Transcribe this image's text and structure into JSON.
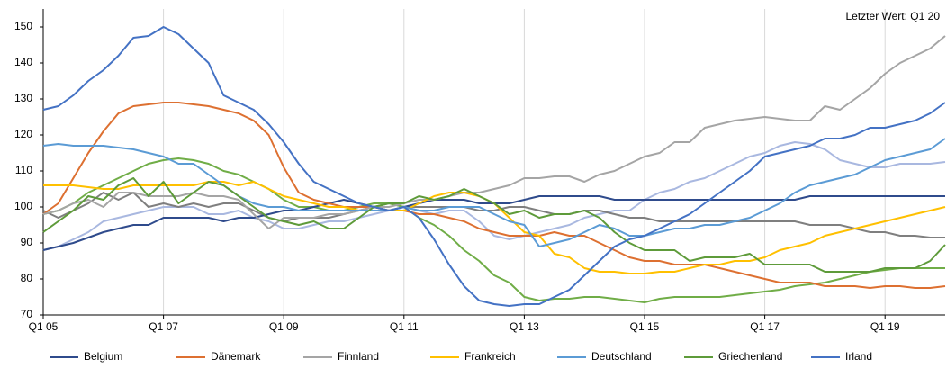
{
  "chart_data": {
    "type": "line",
    "annotation": "Letzter Wert: Q1 20",
    "categories": [
      "Q1 05",
      null,
      null,
      null,
      null,
      null,
      null,
      null,
      "Q1 07",
      null,
      null,
      null,
      null,
      null,
      null,
      null,
      "Q1 09",
      null,
      null,
      null,
      null,
      null,
      null,
      null,
      "Q1 11",
      null,
      null,
      null,
      null,
      null,
      null,
      null,
      "Q1 13",
      null,
      null,
      null,
      null,
      null,
      null,
      null,
      "Q1 15",
      null,
      null,
      null,
      null,
      null,
      null,
      null,
      "Q1 17",
      null,
      null,
      null,
      null,
      null,
      null,
      null,
      "Q1 19",
      null,
      null,
      null,
      null
    ],
    "ylim": [
      70,
      155
    ],
    "yticks": [
      70,
      80,
      90,
      100,
      110,
      120,
      130,
      140,
      150
    ],
    "xgrid": true,
    "series": [
      {
        "color": "#a9b8e0",
        "values": [
          88,
          89,
          91,
          93,
          96,
          97,
          98,
          99,
          100,
          100,
          100,
          98,
          98,
          99,
          97,
          96,
          94,
          94,
          95,
          96,
          96,
          97,
          98,
          99,
          100,
          99,
          98,
          99,
          99,
          96,
          92,
          91,
          92,
          93,
          94,
          95,
          97,
          98,
          99,
          99,
          102,
          104,
          105,
          107,
          108,
          110,
          112,
          114,
          115,
          117,
          118,
          117.5,
          116,
          113,
          112,
          111,
          111,
          112,
          112,
          112,
          112.5
        ]
      },
      {
        "color": "#7f7f7f",
        "values": [
          99,
          97,
          99,
          101,
          104,
          102,
          104,
          100,
          101,
          100,
          101,
          100,
          101,
          101,
          99,
          97,
          96,
          97,
          97,
          97,
          98,
          99,
          100,
          101,
          100,
          100,
          100,
          100,
          100,
          99,
          99,
          100,
          100,
          99,
          98,
          98,
          99,
          99,
          98,
          97,
          97,
          96,
          96,
          96,
          96,
          96,
          96,
          96,
          96,
          96,
          96,
          95,
          95,
          95,
          94,
          93,
          93,
          92,
          92,
          91.5,
          91.5
        ]
      },
      {
        "color": "#70ad47",
        "values": [
          98,
          99,
          101,
          104,
          106,
          108,
          110,
          112,
          113,
          113.5,
          113,
          112,
          110,
          109,
          107,
          105,
          102,
          100,
          100,
          99,
          99,
          100,
          101,
          101,
          100,
          97,
          95,
          92,
          88,
          85,
          81,
          79,
          75,
          74,
          74.5,
          74.5,
          75,
          75,
          74.5,
          74,
          73.5,
          74.5,
          75,
          75,
          75,
          75,
          75.5,
          76,
          76.5,
          77,
          78,
          78.5,
          79,
          80,
          81,
          82,
          82.5,
          83,
          83,
          83,
          83
        ]
      },
      {
        "name": "Belgium",
        "color": "#2f4b8c",
        "values": [
          88,
          89,
          90,
          91.5,
          93,
          94,
          95,
          95,
          97,
          97,
          97,
          97,
          96,
          97,
          97,
          98,
          99,
          99,
          100,
          101,
          102,
          101,
          100,
          99,
          100,
          101,
          102,
          102,
          102,
          101,
          101,
          101,
          102,
          103,
          103,
          103,
          103,
          103,
          102,
          102,
          102,
          102,
          102,
          102,
          102,
          102,
          102,
          102,
          102,
          102,
          102,
          103,
          103,
          103,
          103,
          103,
          103,
          103,
          103,
          103,
          103
        ]
      },
      {
        "name": "Dänemark",
        "color": "#dd7031",
        "values": [
          98,
          101,
          108,
          115,
          121,
          126,
          128,
          128.5,
          129,
          129,
          128.5,
          128,
          127,
          126,
          124,
          120,
          111,
          104,
          102,
          101,
          100,
          100,
          100,
          99,
          99,
          98,
          98,
          97,
          96,
          94,
          93,
          92,
          92,
          92,
          93,
          92,
          92,
          90,
          88,
          86,
          85,
          85,
          84,
          84,
          84,
          83,
          82,
          81,
          80,
          79,
          79,
          79,
          78,
          78,
          78,
          77.5,
          78,
          78,
          77.5,
          77.5,
          78
        ]
      },
      {
        "name": "Finnland",
        "color": "#a5a5a5",
        "values": [
          98,
          99,
          101,
          102,
          100,
          104,
          104,
          103,
          103,
          103,
          104,
          103,
          103,
          102,
          98,
          94,
          97,
          97,
          97,
          98,
          98,
          99,
          100,
          100,
          101,
          102,
          102,
          103,
          104,
          104,
          105,
          106,
          108,
          108,
          108.5,
          108.5,
          107,
          109,
          110,
          112,
          114,
          115,
          118,
          118,
          122,
          123,
          124,
          124.5,
          125,
          124.5,
          124,
          124,
          128,
          127,
          130,
          133,
          137,
          140,
          142,
          144,
          147.5
        ]
      },
      {
        "name": "Frankreich",
        "color": "#ffc000",
        "values": [
          106,
          106,
          106,
          105.5,
          105,
          105,
          106,
          106,
          106,
          106,
          106,
          107,
          107,
          106,
          107,
          105,
          103,
          102,
          101,
          100,
          100,
          99,
          99,
          99,
          99,
          101,
          103,
          104,
          104,
          103,
          101,
          97,
          93,
          92,
          87,
          86,
          83,
          82,
          82,
          81.5,
          81.5,
          82,
          82,
          83,
          84,
          84,
          85,
          85,
          86,
          88,
          89,
          90,
          92,
          93,
          94,
          95,
          96,
          97,
          98,
          99,
          100
        ]
      },
      {
        "name": "Deutschland",
        "color": "#5b9bd5",
        "values": [
          117,
          117.5,
          117,
          117,
          117,
          116.5,
          116,
          115,
          114,
          112,
          112,
          109,
          106,
          103,
          101,
          100,
          100,
          99,
          99,
          99,
          99,
          99,
          99,
          99,
          100,
          99,
          99,
          100,
          100,
          100,
          98,
          96,
          95,
          89,
          90,
          91,
          93,
          95,
          94,
          92,
          92,
          93,
          94,
          94,
          95,
          95,
          96,
          97,
          99,
          101,
          104,
          106,
          107,
          108,
          109,
          111,
          113,
          114,
          115,
          116,
          119
        ]
      },
      {
        "name": "Griechenland",
        "color": "#5e9b3a",
        "values": [
          93,
          96,
          99,
          103,
          102,
          106,
          108,
          103,
          107,
          101,
          104,
          107,
          106,
          103,
          100,
          97,
          96,
          95,
          96,
          94,
          94,
          97,
          100,
          101,
          101,
          103,
          102,
          103,
          105,
          103,
          101,
          98,
          99,
          97,
          98,
          98,
          99,
          97,
          93,
          90,
          88,
          88,
          88,
          85,
          86,
          86,
          86,
          87,
          84,
          84,
          84,
          84,
          82,
          82,
          82,
          82,
          83,
          83,
          83,
          85,
          89.5
        ]
      },
      {
        "name": "Irland",
        "color": "#4472c4",
        "values": [
          127,
          128,
          131,
          135,
          138,
          142,
          147,
          147.5,
          150,
          148,
          144,
          140,
          131,
          129,
          127,
          123,
          118,
          112,
          107,
          105,
          103,
          101,
          100,
          99,
          100,
          97,
          91,
          84,
          78,
          74,
          73,
          72.5,
          73,
          73,
          75,
          77,
          81,
          85,
          89,
          91,
          92,
          94,
          96,
          98,
          101,
          104,
          107,
          110,
          114,
          115,
          116,
          117,
          119,
          119,
          120,
          122,
          122,
          123,
          124,
          126,
          129
        ]
      }
    ]
  }
}
